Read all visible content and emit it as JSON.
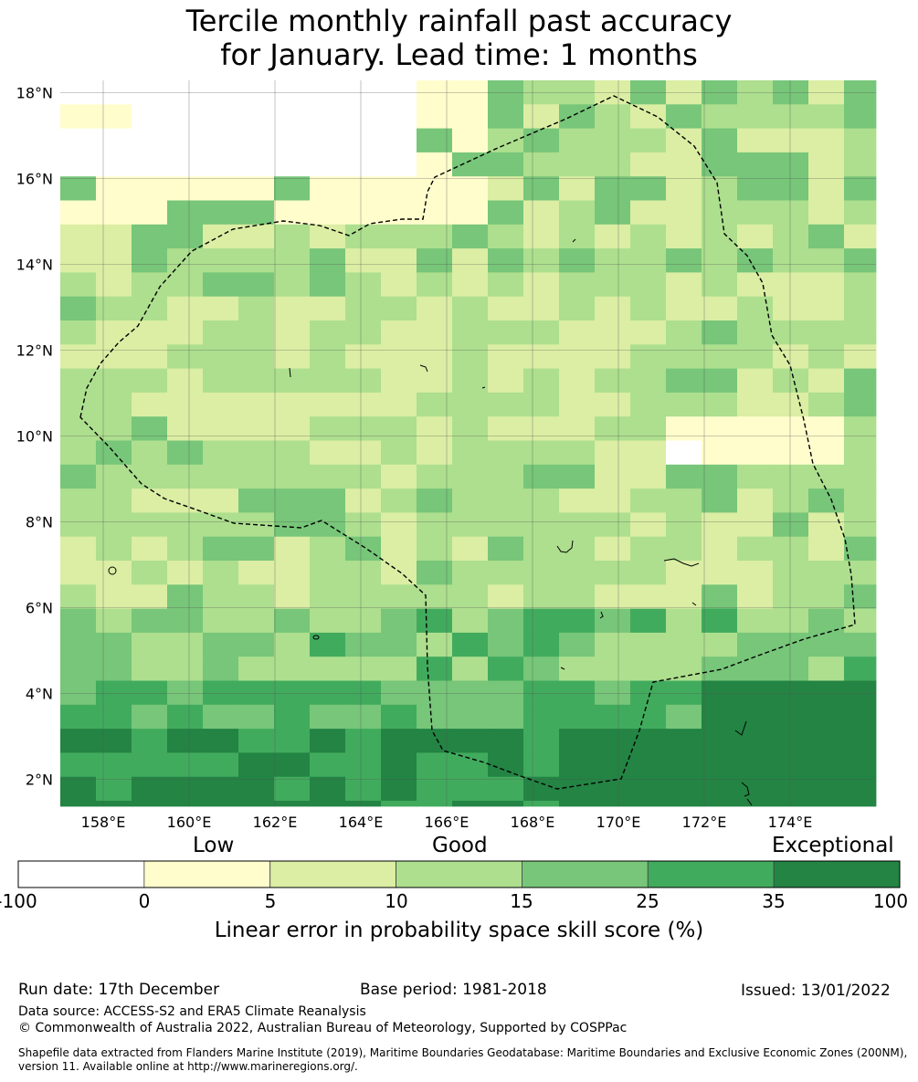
{
  "title": {
    "line1": "Tercile monthly rainfall past accuracy",
    "line2": "for January. Lead time: 1 months"
  },
  "map": {
    "lat_labels": [
      "18°N",
      "16°N",
      "14°N",
      "12°N",
      "10°N",
      "8°N",
      "6°N",
      "4°N",
      "2°N"
    ],
    "lon_labels": [
      "158°E",
      "160°E",
      "162°E",
      "164°E",
      "166°E",
      "168°E",
      "170°E",
      "172°E",
      "174°E"
    ],
    "lat_values": [
      18,
      16,
      14,
      12,
      10,
      8,
      6,
      4,
      2
    ],
    "lon_values": [
      158,
      160,
      162,
      164,
      166,
      168,
      170,
      172,
      174
    ],
    "region_outline": "EEZ boundary (dashed)"
  },
  "colorbar": {
    "category_labels": [
      "Low",
      "Good",
      "Exceptional"
    ],
    "ticks": [
      "-100",
      "0",
      "5",
      "10",
      "15",
      "25",
      "35",
      "100"
    ],
    "colors": [
      "#ffffff",
      "#fffdcc",
      "#dbeea4",
      "#addf8e",
      "#77c679",
      "#41ab5d",
      "#238444"
    ],
    "label": "Linear error in probability space skill score (%)"
  },
  "footer": {
    "run_date": "Run date: 17th December",
    "base_period": "Base period: 1981-2018",
    "issued": "Issued: 13/01/2022",
    "data_source": "Data source: ACCESS-S2 and ERA5 Climate Reanalysis",
    "copyright": "© Commonwealth of Australia 2022, Australian Bureau of Meteorology, Supported by COSPPac",
    "shapefile_line1": "Shapefile data extracted from Flanders Marine Institute (2019), Maritime Boundaries Geodatabase: Maritime Boundaries and Exclusive Economic Zones (200NM),",
    "shapefile_line2": "version 11. Available online at http://www.marineregions.org/."
  }
}
